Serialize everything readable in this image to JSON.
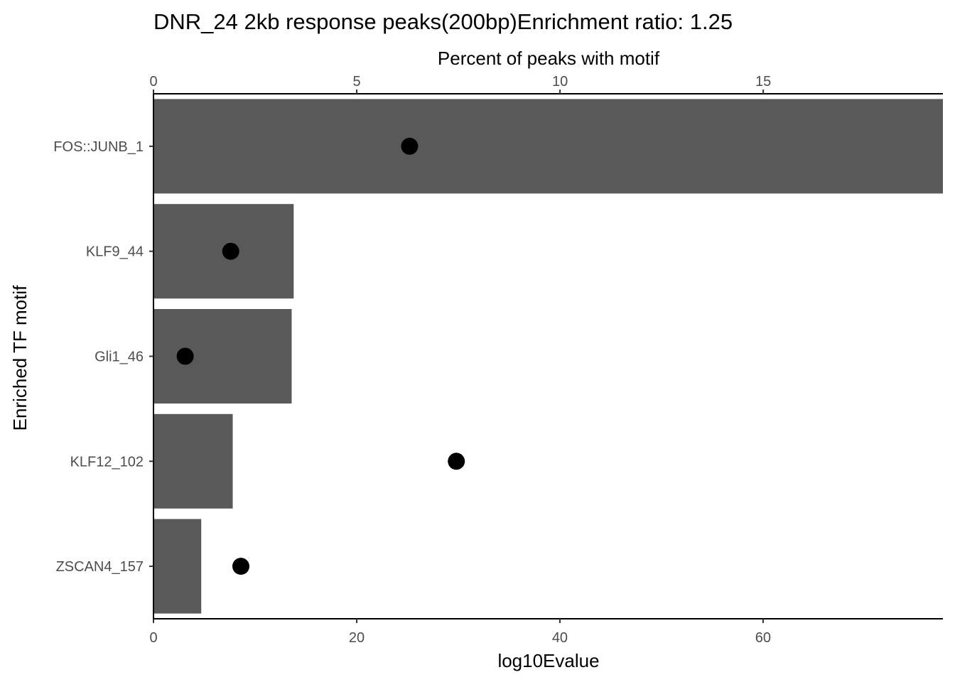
{
  "chart_data": {
    "type": "bar",
    "title": "DNR_24 2kb response peaks(200bp)Enrichment ratio: 1.25",
    "ylabel": "Enriched TF motif",
    "categories": [
      "FOS::JUNB_1",
      "KLF9_44",
      "Gli1_46",
      "KLF12_102",
      "ZSCAN4_157"
    ],
    "bottom_axis": {
      "label": "log10Evalue",
      "ticks": [
        0,
        20,
        40,
        60
      ],
      "range": [
        0,
        77.7
      ]
    },
    "top_axis": {
      "label": "Percent of peaks with motif",
      "ticks": [
        0,
        5,
        10,
        15
      ],
      "range": [
        0,
        19.42
      ]
    },
    "series": [
      {
        "mark": "bar",
        "axis": "bottom",
        "values": [
          77.7,
          13.8,
          13.6,
          7.8,
          4.7
        ]
      },
      {
        "mark": "point",
        "axis": "top",
        "values": [
          6.3,
          1.9,
          0.78,
          7.45,
          2.15
        ]
      }
    ],
    "colors": {
      "bar": "#595959",
      "point": "#000000",
      "axis": "#000000",
      "tick_text": "#4d4d4d"
    },
    "grid": false
  }
}
